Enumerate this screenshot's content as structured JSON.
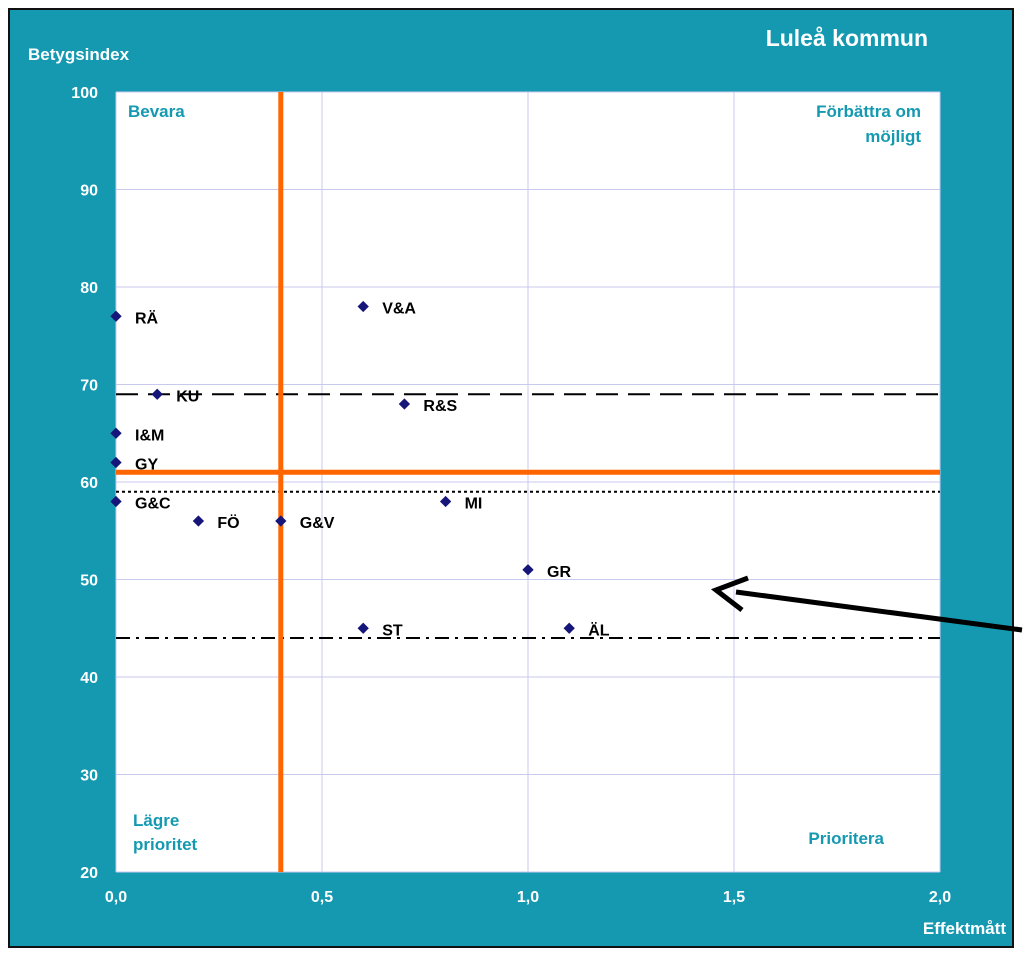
{
  "header": {
    "title": "Luleå kommun"
  },
  "chart_data": {
    "type": "scatter",
    "title": "",
    "xlabel": "Effektmått",
    "ylabel": "Betygsindex",
    "xlim": [
      0,
      2
    ],
    "ylim": [
      20,
      100
    ],
    "x_ticks": [
      "0,0",
      "0,5",
      "1,0",
      "1,5",
      "2,0"
    ],
    "y_ticks": [
      "20",
      "30",
      "40",
      "50",
      "60",
      "70",
      "80",
      "90",
      "100"
    ],
    "grid": true,
    "points": [
      {
        "label": "RÄ",
        "x": 0.0,
        "y": 77
      },
      {
        "label": "V&A",
        "x": 0.6,
        "y": 78
      },
      {
        "label": "KU",
        "x": 0.1,
        "y": 69
      },
      {
        "label": "R&S",
        "x": 0.7,
        "y": 68
      },
      {
        "label": "I&M",
        "x": 0.0,
        "y": 65
      },
      {
        "label": "GY",
        "x": 0.0,
        "y": 62
      },
      {
        "label": "G&C",
        "x": 0.0,
        "y": 58
      },
      {
        "label": "MI",
        "x": 0.8,
        "y": 58
      },
      {
        "label": "FÖ",
        "x": 0.2,
        "y": 56
      },
      {
        "label": "G&V",
        "x": 0.4,
        "y": 56
      },
      {
        "label": "GR",
        "x": 1.0,
        "y": 51
      },
      {
        "label": "ST",
        "x": 0.6,
        "y": 45
      },
      {
        "label": "ÄL",
        "x": 1.1,
        "y": 45
      }
    ],
    "reference_lines": {
      "vertical_x": 0.4,
      "horizontal_y": 61,
      "dashed_y": 69,
      "dotted_y": 59,
      "dashdot_y": 44
    },
    "quadrant_labels": {
      "top_left": [
        "Bevara"
      ],
      "top_right": [
        "Förbättra om",
        "möjligt"
      ],
      "bottom_left": [
        "Lägre",
        "prioritet"
      ],
      "bottom_right": [
        "Prioritera"
      ]
    },
    "colors": {
      "background": "#1599b1",
      "plot_area": "#ffffff",
      "grid": "#c9c9ee",
      "marker": "#15157a",
      "reference_orange": "#ff6600",
      "quadrant_text": "#1599b1"
    }
  }
}
